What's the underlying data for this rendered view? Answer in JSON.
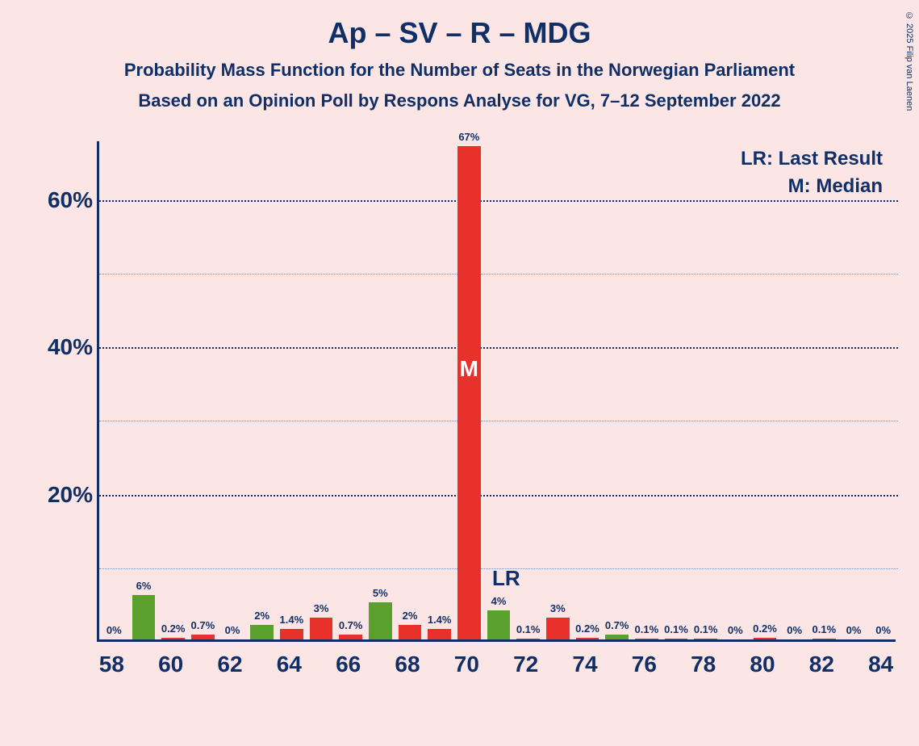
{
  "title": "Ap – SV – R – MDG",
  "subtitle1": "Probability Mass Function for the Number of Seats in the Norwegian Parliament",
  "subtitle2": "Based on an Opinion Poll by Respons Analyse for VG, 7–12 September 2022",
  "copyright": "© 2025 Filip van Laenen",
  "legend": {
    "lr": "LR: Last Result",
    "m": "M: Median"
  },
  "lr_marker": "LR",
  "median_marker": "M",
  "chart": {
    "type": "bar",
    "background_color": "#fce5e5",
    "axis_color": "#0f2f66",
    "text_color": "#0f2f66",
    "grid_major_color": "#0f2f66",
    "grid_minor_color": "#7a8db0",
    "bar_colors": {
      "green": "#5aa02c",
      "red": "#e8312a"
    },
    "xlim": [
      57.5,
      84.5
    ],
    "ylim": [
      0,
      68
    ],
    "ytick_major": [
      20,
      40,
      60
    ],
    "ytick_minor": [
      10,
      30,
      50
    ],
    "xtick_labels": [
      58,
      60,
      62,
      64,
      66,
      68,
      70,
      72,
      74,
      76,
      78,
      80,
      82,
      84
    ],
    "bar_width": 0.78,
    "bars": [
      {
        "x": 58,
        "value": 0,
        "label": "0%",
        "color": "green"
      },
      {
        "x": 59,
        "value": 6,
        "label": "6%",
        "color": "green"
      },
      {
        "x": 60,
        "value": 0.2,
        "label": "0.2%",
        "color": "red"
      },
      {
        "x": 61,
        "value": 0.7,
        "label": "0.7%",
        "color": "red"
      },
      {
        "x": 62,
        "value": 0,
        "label": "0%",
        "color": "green"
      },
      {
        "x": 63,
        "value": 2,
        "label": "2%",
        "color": "green"
      },
      {
        "x": 64,
        "value": 1.4,
        "label": "1.4%",
        "color": "red"
      },
      {
        "x": 65,
        "value": 3,
        "label": "3%",
        "color": "red"
      },
      {
        "x": 66,
        "value": 0.7,
        "label": "0.7%",
        "color": "red"
      },
      {
        "x": 67,
        "value": 5,
        "label": "5%",
        "color": "green"
      },
      {
        "x": 68,
        "value": 2,
        "label": "2%",
        "color": "red"
      },
      {
        "x": 69,
        "value": 1.4,
        "label": "1.4%",
        "color": "red"
      },
      {
        "x": 70,
        "value": 67,
        "label": "67%",
        "color": "red",
        "median": true
      },
      {
        "x": 71,
        "value": 4,
        "label": "4%",
        "color": "green",
        "lr": true
      },
      {
        "x": 72,
        "value": 0.1,
        "label": "0.1%",
        "color": "red"
      },
      {
        "x": 73,
        "value": 3,
        "label": "3%",
        "color": "red"
      },
      {
        "x": 74,
        "value": 0.2,
        "label": "0.2%",
        "color": "red"
      },
      {
        "x": 75,
        "value": 0.7,
        "label": "0.7%",
        "color": "green"
      },
      {
        "x": 76,
        "value": 0.1,
        "label": "0.1%",
        "color": "red"
      },
      {
        "x": 77,
        "value": 0.1,
        "label": "0.1%",
        "color": "red"
      },
      {
        "x": 78,
        "value": 0.1,
        "label": "0.1%",
        "color": "red"
      },
      {
        "x": 79,
        "value": 0,
        "label": "0%",
        "color": "red"
      },
      {
        "x": 80,
        "value": 0.2,
        "label": "0.2%",
        "color": "red"
      },
      {
        "x": 81,
        "value": 0,
        "label": "0%",
        "color": "red"
      },
      {
        "x": 82,
        "value": 0.1,
        "label": "0.1%",
        "color": "red"
      },
      {
        "x": 83,
        "value": 0,
        "label": "0%",
        "color": "red"
      },
      {
        "x": 84,
        "value": 0,
        "label": "0%",
        "color": "red"
      }
    ]
  }
}
